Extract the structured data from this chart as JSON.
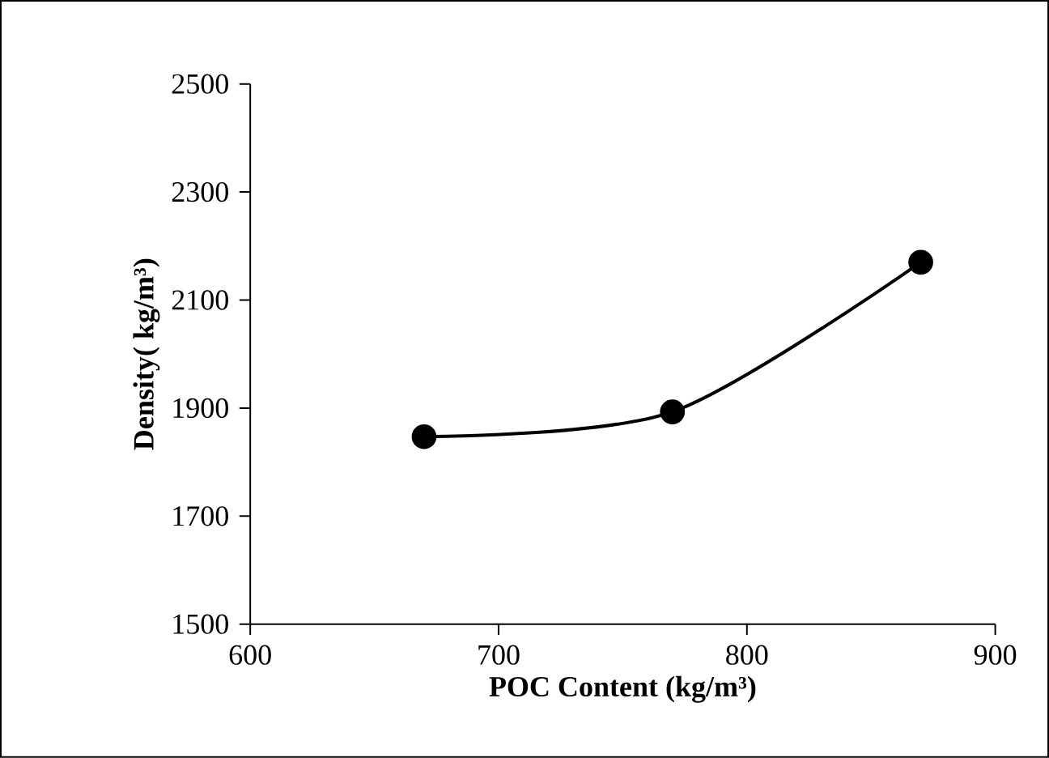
{
  "chart_data": {
    "type": "line",
    "xlabel": "POC Content (kg/m³)",
    "ylabel": "Density( kg/m³)",
    "x": [
      670,
      770,
      870
    ],
    "series": [
      {
        "color": "#000000",
        "values": [
          1847,
          1893,
          2170
        ]
      }
    ],
    "xlim": [
      600,
      900
    ],
    "ylim": [
      1500,
      2500
    ],
    "xticks": [
      600,
      700,
      800,
      900
    ],
    "yticks": [
      1500,
      1700,
      1900,
      2100,
      2300,
      2500
    ],
    "marker": "circle",
    "line_style": "solid"
  }
}
